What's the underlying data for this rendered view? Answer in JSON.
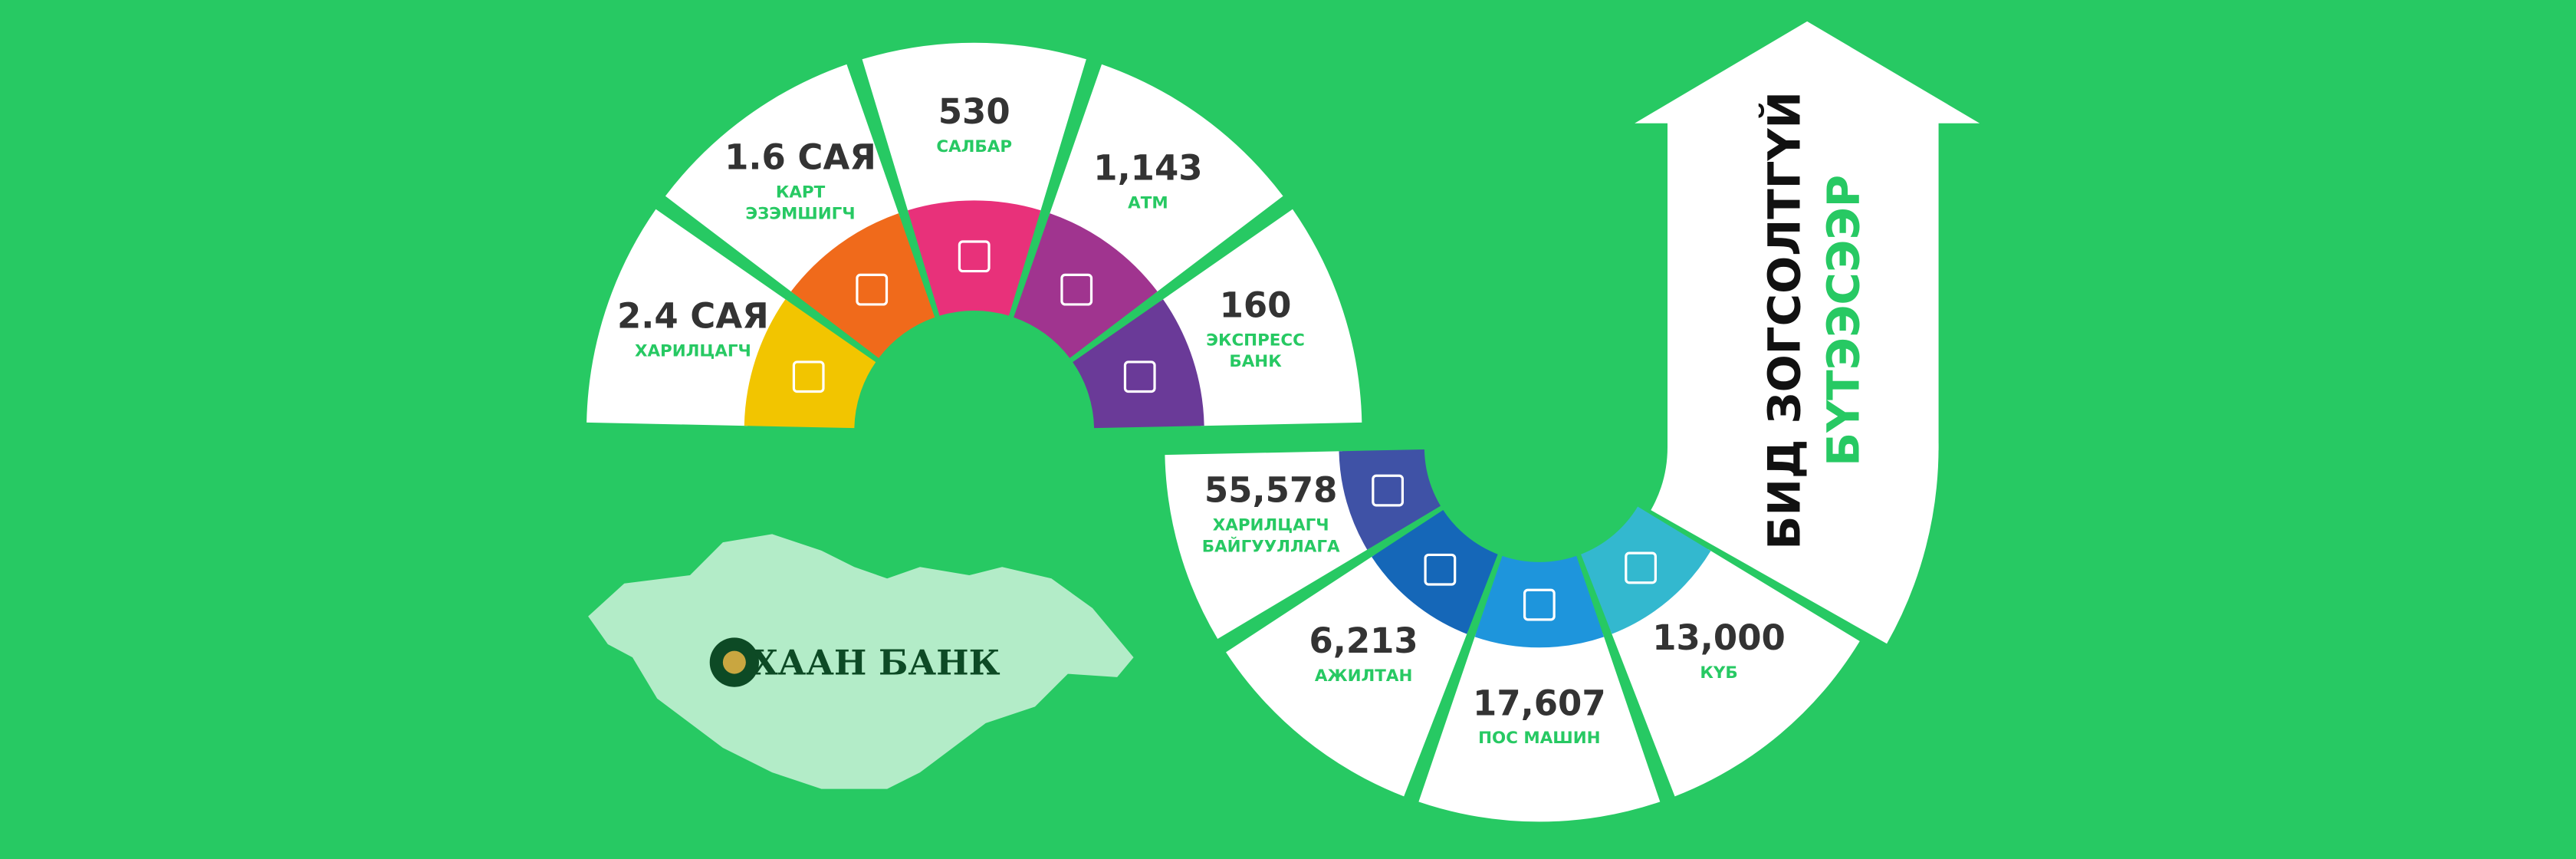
{
  "header": {
    "line1": "БИД ЗОГСОЛТГҮЙ",
    "line2": "БҮТЭЭСЭЭР"
  },
  "logo": {
    "name": "ХААН БАНК"
  },
  "stats": [
    {
      "value": "2.4 САЯ",
      "label": [
        "ХАРИЛЦАГЧ"
      ],
      "color": "#f2c500"
    },
    {
      "value": "1.6 САЯ",
      "label": [
        "КАРТ",
        "ЭЗЭМШИГЧ"
      ],
      "color": "#f06a1b"
    },
    {
      "value": "530",
      "label": [
        "САЛБАР"
      ],
      "color": "#e8317a"
    },
    {
      "value": "1,143",
      "label": [
        "АТМ"
      ],
      "color": "#a0348f"
    },
    {
      "value": "160",
      "label": [
        "ЭКСПРЕСС",
        "БАНК"
      ],
      "color": "#6a3a98"
    },
    {
      "value": "55,578",
      "label": [
        "ХАРИЛЦАГЧ",
        "БАЙГУУЛЛАГА"
      ],
      "color": "#3f52a6"
    },
    {
      "value": "6,213",
      "label": [
        "АЖИЛТАН"
      ],
      "color": "#1567b8"
    },
    {
      "value": "17,607",
      "label": [
        "ПОС МАШИН"
      ],
      "color": "#1e95dc"
    },
    {
      "value": "13,000",
      "label": [
        "КҮБ"
      ],
      "color": "#33b8cf"
    }
  ]
}
